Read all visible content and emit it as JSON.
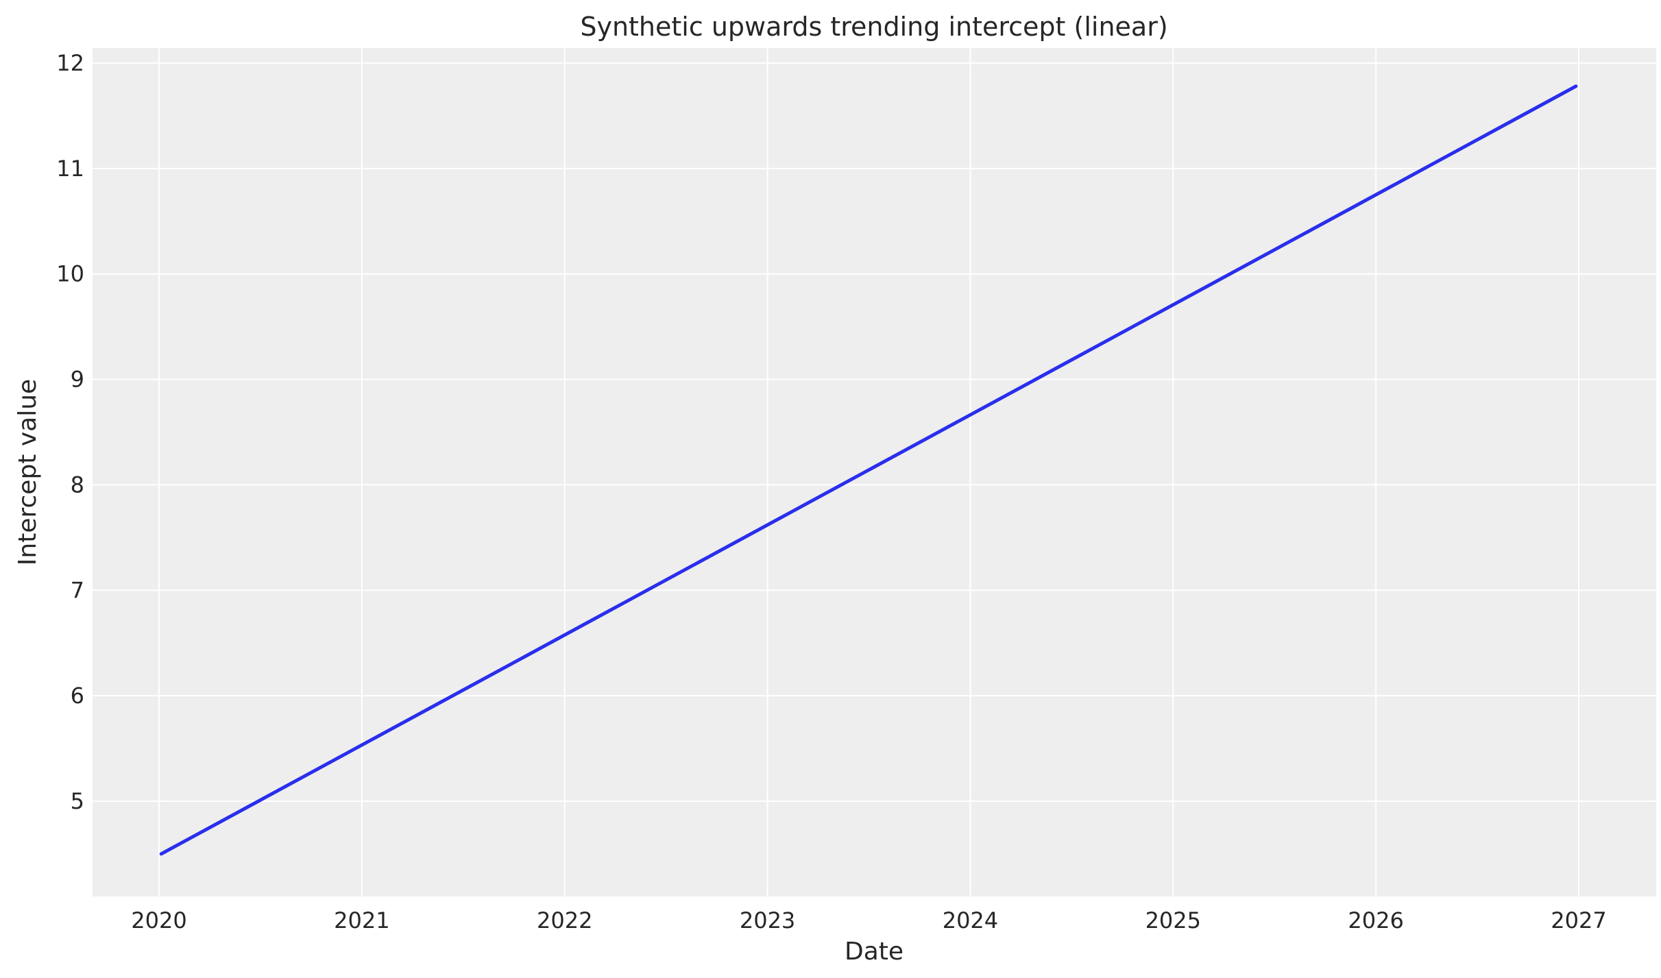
{
  "chart_data": {
    "type": "line",
    "title": "Synthetic upwards trending intercept (linear)",
    "xlabel": "Date",
    "ylabel": "Intercept value",
    "x_tick_labels": [
      "2020",
      "2021",
      "2022",
      "2023",
      "2024",
      "2025",
      "2026",
      "2027"
    ],
    "y_tick_labels": [
      "5",
      "6",
      "7",
      "8",
      "9",
      "10",
      "11",
      "12"
    ],
    "xlim": [
      "2019-08-25",
      "2027-05-05"
    ],
    "ylim": [
      4.14,
      12.14
    ],
    "grid": true,
    "series": [
      {
        "x": [
          "2020-01-05",
          "2026-12-27"
        ],
        "values": [
          4.5,
          11.78
        ],
        "color": "#2a2eec"
      }
    ],
    "colors": {
      "background": "#eeeeee",
      "grid": "#ffffff",
      "line": "#2a2eec"
    }
  }
}
